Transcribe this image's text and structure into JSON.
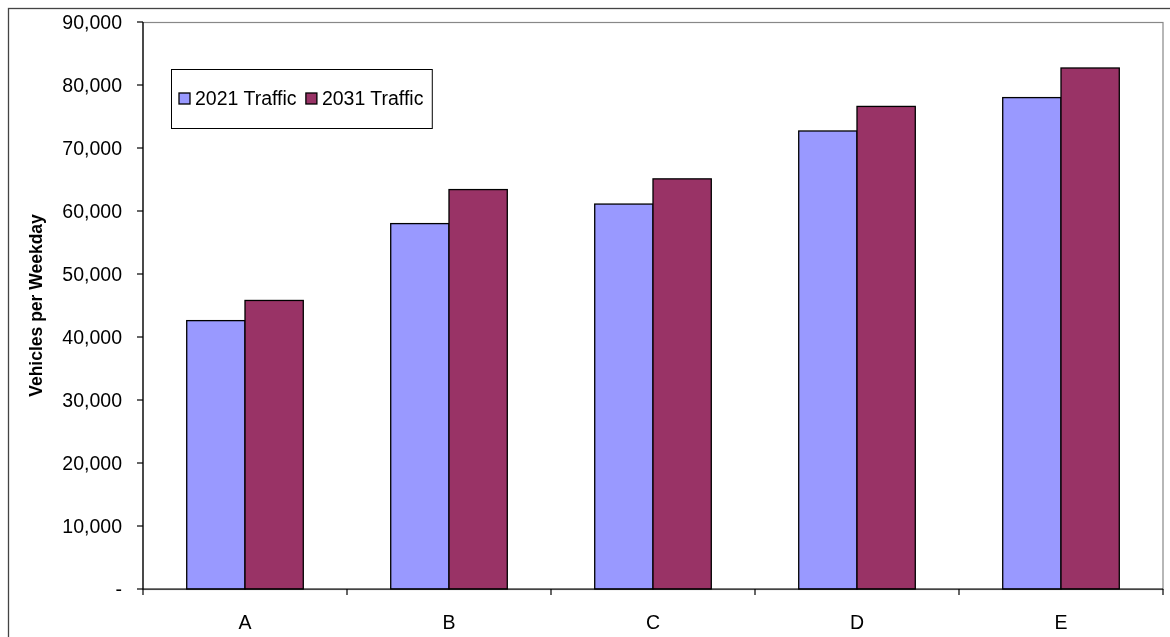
{
  "chart_data": {
    "type": "bar",
    "ylabel": "Vehicles per Weekday",
    "categories": [
      "A",
      "B",
      "C",
      "D",
      "E"
    ],
    "series": [
      {
        "name": "2021 Traffic",
        "color": "#9999ff",
        "values": [
          42600,
          58000,
          61100,
          72700,
          78000
        ]
      },
      {
        "name": "2031 Traffic",
        "color": "#993366",
        "values": [
          45800,
          63400,
          65100,
          76600,
          82700
        ]
      }
    ],
    "ylim": [
      0,
      90000
    ],
    "yticks": [
      {
        "value": 0,
        "label": "-"
      },
      {
        "value": 10000,
        "label": "10,000"
      },
      {
        "value": 20000,
        "label": "20,000"
      },
      {
        "value": 30000,
        "label": "30,000"
      },
      {
        "value": 40000,
        "label": "40,000"
      },
      {
        "value": 50000,
        "label": "50,000"
      },
      {
        "value": 60000,
        "label": "60,000"
      },
      {
        "value": 70000,
        "label": "70,000"
      },
      {
        "value": 80000,
        "label": "80,000"
      },
      {
        "value": 90000,
        "label": "90,000"
      }
    ],
    "legend": "top left"
  }
}
